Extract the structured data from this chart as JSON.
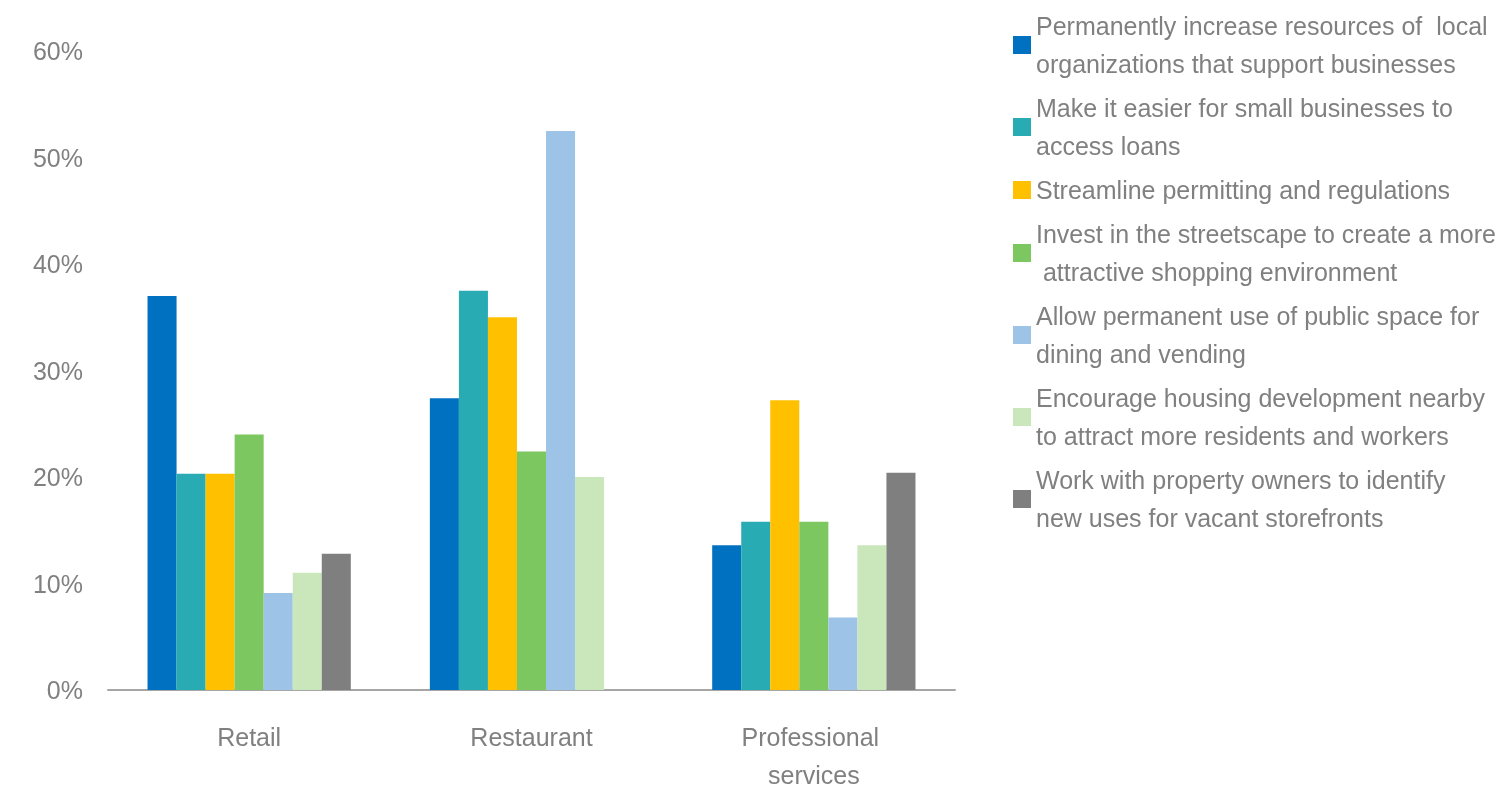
{
  "chart_data": {
    "type": "bar",
    "categories": [
      "Retail",
      "Restaurant",
      "Professional services"
    ],
    "series": [
      {
        "name": "Permanently increase resources of  local organizations that support businesses",
        "color": "#0070c0",
        "values": [
          37.0,
          27.4,
          13.6
        ]
      },
      {
        "name": "Make it easier for small businesses to access loans",
        "color": "#29abb3",
        "values": [
          20.3,
          37.5,
          15.8
        ]
      },
      {
        "name": "Streamline permitting and regulations",
        "color": "#ffc000",
        "values": [
          20.3,
          35.0,
          27.2
        ]
      },
      {
        "name": "Invest in the streetscape to create a more attractive shopping environment",
        "color": "#7dc760",
        "values": [
          24.0,
          22.4,
          15.8
        ]
      },
      {
        "name": "Allow permanent use of public space for dining and vending",
        "color": "#9dc3e6",
        "values": [
          9.1,
          52.5,
          6.8
        ]
      },
      {
        "name": "Encourage housing development nearby to attract more residents and workers",
        "color": "#c9e7bb",
        "values": [
          11.0,
          20.0,
          13.6
        ]
      },
      {
        "name": "Work with property owners to identify new uses for vacant storefronts",
        "color": "#7f7f7f",
        "values": [
          12.8,
          null,
          20.4
        ]
      }
    ],
    "ylim": [
      0,
      60
    ],
    "yticks": [
      {
        "value": 0,
        "label": "0%"
      },
      {
        "value": 10,
        "label": "10%"
      },
      {
        "value": 20,
        "label": "20%"
      },
      {
        "value": 30,
        "label": "30%"
      },
      {
        "value": 40,
        "label": "40%"
      },
      {
        "value": 50,
        "label": "50%"
      },
      {
        "value": 60,
        "label": "60%"
      }
    ],
    "grid": false,
    "legend": "right"
  }
}
